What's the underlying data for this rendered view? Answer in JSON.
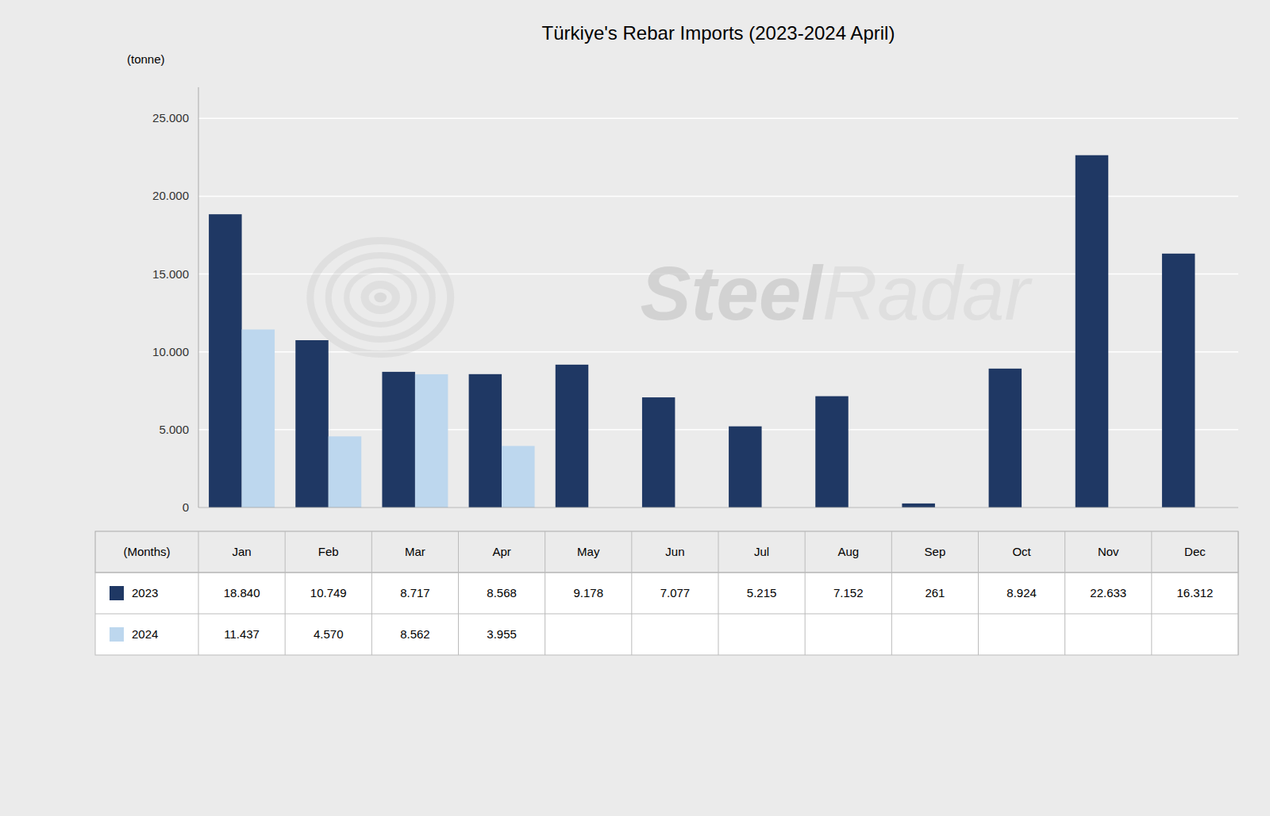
{
  "chart_data": {
    "type": "bar",
    "title": "Türkiye's Rebar Imports (2023-2024 April)",
    "ylabel": "(tonne)",
    "xlabel": "(Months)",
    "categories": [
      "Jan",
      "Feb",
      "Mar",
      "Apr",
      "May",
      "Jun",
      "Jul",
      "Aug",
      "Sep",
      "Oct",
      "Nov",
      "Dec"
    ],
    "series": [
      {
        "name": "2023",
        "color": "#1F3864",
        "values": [
          18840,
          10749,
          8717,
          8568,
          9178,
          7077,
          5215,
          7152,
          261,
          8924,
          22633,
          16312
        ],
        "value_labels": [
          "18.840",
          "10.749",
          "8.717",
          "8.568",
          "9.178",
          "7.077",
          "5.215",
          "7.152",
          "261",
          "8.924",
          "22.633",
          "16.312"
        ]
      },
      {
        "name": "2024",
        "color": "#BDD7EE",
        "values": [
          11437,
          4570,
          8562,
          3955,
          null,
          null,
          null,
          null,
          null,
          null,
          null,
          null
        ],
        "value_labels": [
          "11.437",
          "4.570",
          "8.562",
          "3.955",
          null,
          null,
          null,
          null,
          null,
          null,
          null,
          null
        ]
      }
    ],
    "ylim": [
      0,
      27000
    ],
    "yticks": [
      0,
      {
        "value": 5000,
        "label": "5.000"
      },
      {
        "value": 10000,
        "label": "10.000"
      },
      {
        "value": 15000,
        "label": "15.000"
      },
      {
        "value": 20000,
        "label": "20.000"
      },
      {
        "value": 25000,
        "label": "25.000"
      }
    ],
    "grid": true,
    "annotations": [
      "Steel",
      "Radar"
    ]
  }
}
